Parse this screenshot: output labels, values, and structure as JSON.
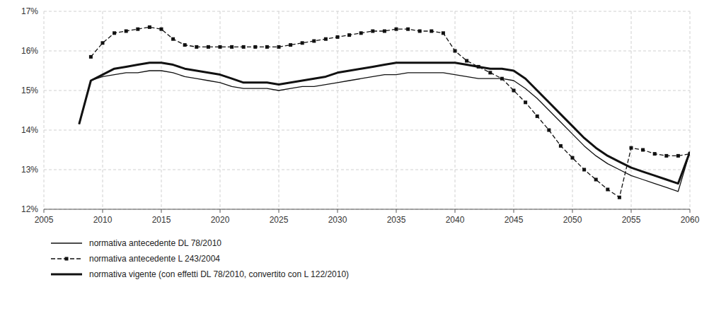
{
  "chart_data": {
    "type": "line",
    "xlim": [
      2005,
      2060
    ],
    "ylim": [
      0.12,
      0.17
    ],
    "xticks": [
      2005,
      2010,
      2015,
      2020,
      2025,
      2030,
      2035,
      2040,
      2045,
      2050,
      2055,
      2060
    ],
    "yticks": [
      {
        "value": 0.12,
        "label": "12%"
      },
      {
        "value": 0.13,
        "label": "13%"
      },
      {
        "value": 0.14,
        "label": "14%"
      },
      {
        "value": 0.15,
        "label": "15%"
      },
      {
        "value": 0.16,
        "label": "16%"
      },
      {
        "value": 0.17,
        "label": "17%"
      }
    ],
    "grid": true,
    "legend": "bottom",
    "series": [
      {
        "name": "normativa antecedente DL 78/2010",
        "color": "#111111",
        "line_style": "solid",
        "x": [
          2008,
          2009,
          2010,
          2011,
          2012,
          2013,
          2014,
          2015,
          2016,
          2017,
          2018,
          2019,
          2020,
          2021,
          2022,
          2023,
          2024,
          2025,
          2026,
          2027,
          2028,
          2029,
          2030,
          2031,
          2032,
          2033,
          2034,
          2035,
          2036,
          2037,
          2038,
          2039,
          2040,
          2041,
          2042,
          2043,
          2044,
          2045,
          2046,
          2047,
          2048,
          2049,
          2050,
          2051,
          2052,
          2053,
          2054,
          2055,
          2056,
          2057,
          2058,
          2059,
          2060
        ],
        "values": [
          0.1415,
          0.1525,
          0.1535,
          0.154,
          0.1545,
          0.1545,
          0.155,
          0.155,
          0.1545,
          0.1535,
          0.153,
          0.1525,
          0.152,
          0.151,
          0.1505,
          0.1505,
          0.1505,
          0.15,
          0.1505,
          0.151,
          0.151,
          0.1515,
          0.152,
          0.1525,
          0.153,
          0.1535,
          0.154,
          0.154,
          0.1545,
          0.1545,
          0.1545,
          0.1545,
          0.154,
          0.1535,
          0.153,
          0.153,
          0.153,
          0.1525,
          0.1505,
          0.148,
          0.145,
          0.142,
          0.139,
          0.136,
          0.1335,
          0.1315,
          0.13,
          0.1285,
          0.1275,
          0.1265,
          0.1255,
          0.1245,
          0.1345
        ]
      },
      {
        "name": "normativa antecedente L 243/2004",
        "color": "#111111",
        "line_style": "dashed",
        "marker": "square",
        "x": [
          2009,
          2010,
          2011,
          2012,
          2013,
          2014,
          2015,
          2016,
          2017,
          2018,
          2019,
          2020,
          2021,
          2022,
          2023,
          2024,
          2025,
          2026,
          2027,
          2028,
          2029,
          2030,
          2031,
          2032,
          2033,
          2034,
          2035,
          2036,
          2037,
          2038,
          2039,
          2040,
          2041,
          2042,
          2043,
          2044,
          2045,
          2046,
          2047,
          2048,
          2049,
          2050,
          2051,
          2052,
          2053,
          2054,
          2055,
          2056,
          2057,
          2058,
          2059,
          2060
        ],
        "values": [
          0.1585,
          0.162,
          0.1645,
          0.165,
          0.1655,
          0.166,
          0.1655,
          0.163,
          0.1615,
          0.161,
          0.161,
          0.161,
          0.161,
          0.161,
          0.161,
          0.161,
          0.161,
          0.1615,
          0.162,
          0.1625,
          0.163,
          0.1635,
          0.164,
          0.1645,
          0.165,
          0.165,
          0.1655,
          0.1655,
          0.165,
          0.165,
          0.1645,
          0.16,
          0.1575,
          0.156,
          0.1545,
          0.153,
          0.15,
          0.147,
          0.1435,
          0.14,
          0.136,
          0.133,
          0.13,
          0.1275,
          0.125,
          0.123,
          0.1355,
          0.135,
          0.134,
          0.1335,
          0.1335,
          0.134
        ]
      },
      {
        "name": "normativa vigente (con effetti DL 78/2010, convertito con L 122/2010)",
        "color": "#111111",
        "line_style": "solid",
        "x": [
          2008,
          2009,
          2010,
          2011,
          2012,
          2013,
          2014,
          2015,
          2016,
          2017,
          2018,
          2019,
          2020,
          2021,
          2022,
          2023,
          2024,
          2025,
          2026,
          2027,
          2028,
          2029,
          2030,
          2031,
          2032,
          2033,
          2034,
          2035,
          2036,
          2037,
          2038,
          2039,
          2040,
          2041,
          2042,
          2043,
          2044,
          2045,
          2046,
          2047,
          2048,
          2049,
          2050,
          2051,
          2052,
          2053,
          2054,
          2055,
          2056,
          2057,
          2058,
          2059,
          2060
        ],
        "values": [
          0.1415,
          0.1525,
          0.154,
          0.1555,
          0.156,
          0.1565,
          0.157,
          0.157,
          0.1565,
          0.1555,
          0.155,
          0.1545,
          0.154,
          0.153,
          0.152,
          0.152,
          0.152,
          0.1515,
          0.152,
          0.1525,
          0.153,
          0.1535,
          0.1545,
          0.155,
          0.1555,
          0.156,
          0.1565,
          0.157,
          0.157,
          0.157,
          0.157,
          0.157,
          0.157,
          0.1565,
          0.156,
          0.1555,
          0.1555,
          0.155,
          0.153,
          0.15,
          0.147,
          0.144,
          0.141,
          0.138,
          0.1355,
          0.1335,
          0.132,
          0.1305,
          0.1295,
          0.1285,
          0.1275,
          0.1265,
          0.1345
        ]
      }
    ]
  }
}
